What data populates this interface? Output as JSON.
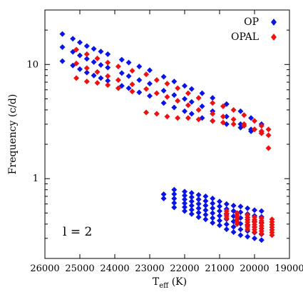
{
  "chart_data": {
    "type": "scatter",
    "title": "",
    "xlabel": "T",
    "xlabel_sub": "eff",
    "xlabel_unit": " (K)",
    "ylabel": "Frequency (c/d)",
    "x_scale": "linear",
    "x_inverted": true,
    "xlim": [
      26000,
      19000
    ],
    "y_scale": "log",
    "ylim": [
      0.2,
      30
    ],
    "x_ticks": [
      26000,
      25000,
      24000,
      23000,
      22000,
      21000,
      20000,
      19000
    ],
    "x_tick_labels": [
      "26000",
      "25000",
      "24000",
      "23000",
      "22000",
      "21000",
      "20000",
      "19000"
    ],
    "y_ticks": [
      1,
      10
    ],
    "y_tick_labels": [
      "1",
      "10"
    ],
    "grid": false,
    "legend_position": "top-right",
    "annotation": "l = 2",
    "series": [
      {
        "name": "OP",
        "color": "#0a14e6",
        "marker": "diamond",
        "high_x": [
          25500,
          25200,
          25000,
          24800,
          24600,
          24400,
          24200,
          23800,
          23600,
          23300,
          23000,
          22600,
          22300,
          22000,
          21800,
          21500,
          21200,
          20800,
          20400,
          20100,
          19800
        ],
        "high_bands": [
          [
            18.5,
            16.8,
            15.6,
            14.5,
            13.7,
            13.0,
            12.3,
            11.0,
            10.4,
            9.6,
            8.9,
            7.8,
            7.1,
            6.5,
            6.1,
            5.6,
            5.1,
            4.5,
            3.9,
            3.4,
            3.0
          ],
          [
            14.2,
            12.9,
            12.0,
            11.2,
            10.5,
            9.9,
            9.4,
            8.4,
            7.9,
            7.3,
            6.8,
            5.9,
            5.4,
            5.0,
            4.7,
            4.3,
            3.9,
            3.5,
            3.0,
            2.7,
            2.6
          ],
          [
            10.7,
            9.8,
            9.1,
            8.5,
            8.0,
            7.6,
            7.2,
            6.5,
            6.2,
            5.7,
            5.3,
            4.6,
            4.2,
            3.9,
            3.7,
            3.4,
            3.2,
            3.0,
            2.8,
            2.6,
            2.5
          ]
        ],
        "low_x": [
          22600,
          22300,
          22000,
          21800,
          21600,
          21400,
          21200,
          21000,
          20800,
          20600,
          20400,
          20200,
          20000,
          19800
        ],
        "low_max": [
          0.73,
          0.8,
          0.77,
          0.75,
          0.72,
          0.7,
          0.67,
          0.63,
          0.6,
          0.58,
          0.57,
          0.55,
          0.53,
          0.52
        ],
        "low_min": [
          0.67,
          0.56,
          0.52,
          0.49,
          0.46,
          0.44,
          0.41,
          0.39,
          0.36,
          0.34,
          0.32,
          0.31,
          0.3,
          0.29
        ],
        "low_count": [
          2,
          5,
          6,
          6,
          6,
          6,
          6,
          6,
          6,
          6,
          6,
          6,
          6,
          6
        ]
      },
      {
        "name": "OPAL",
        "color": "#ee1111",
        "marker": "diamond",
        "high_x": [
          25100,
          24800,
          24500,
          24200,
          23900,
          23500,
          23100,
          22800,
          22500,
          22200,
          21900,
          21600,
          21200,
          20900,
          20600,
          20300,
          20000,
          19800,
          19600
        ],
        "high_bands": [
          [
            13.5,
            12.3,
            11.3,
            10.4,
            9.6,
            8.8,
            8.2,
            7.3,
            6.8,
            6.2,
            5.6,
            5.1,
            4.6,
            4.3,
            4.0,
            3.6,
            3.2,
            2.9,
            2.7
          ],
          [
            10.2,
            9.3,
            8.6,
            7.9,
            7.3,
            6.7,
            6.1,
            5.6,
            5.2,
            4.8,
            4.4,
            4.0,
            3.7,
            3.5,
            3.3,
            3.0,
            2.7,
            2.5,
            2.4
          ],
          [
            7.6,
            7.1,
            6.9,
            6.6,
            6.2,
            5.8,
            3.8,
            3.7,
            3.5,
            3.4,
            3.4,
            3.3,
            3.2,
            3.1,
            3.0,
            2.9,
            2.7,
            2.6,
            1.85
          ]
        ],
        "low_x": [
          20800,
          20500,
          20200,
          20000,
          19800,
          19500
        ],
        "low_max": [
          0.52,
          0.5,
          0.48,
          0.46,
          0.45,
          0.44
        ],
        "low_min": [
          0.45,
          0.4,
          0.36,
          0.34,
          0.33,
          0.32
        ],
        "low_count": [
          4,
          6,
          7,
          7,
          7,
          7
        ]
      }
    ]
  }
}
